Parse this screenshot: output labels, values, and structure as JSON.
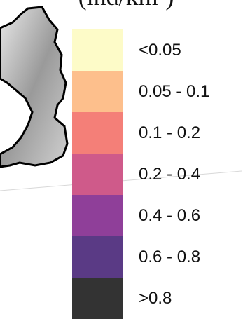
{
  "title": "(ind/km²)",
  "legend": {
    "items": [
      {
        "label": "<0.05",
        "color": "#fdfbc8"
      },
      {
        "label": "0.05 - 0.1",
        "color": "#fdbf8c"
      },
      {
        "label": "0.1 - 0.2",
        "color": "#f47f78"
      },
      {
        "label": "0.2 - 0.4",
        "color": "#cf5a8a"
      },
      {
        "label": "0.4 - 0.6",
        "color": "#8f3f99"
      },
      {
        "label": "0.6 - 0.8",
        "color": "#5a3a85"
      },
      {
        "label": ">0.8",
        "color": "#333333"
      }
    ]
  }
}
